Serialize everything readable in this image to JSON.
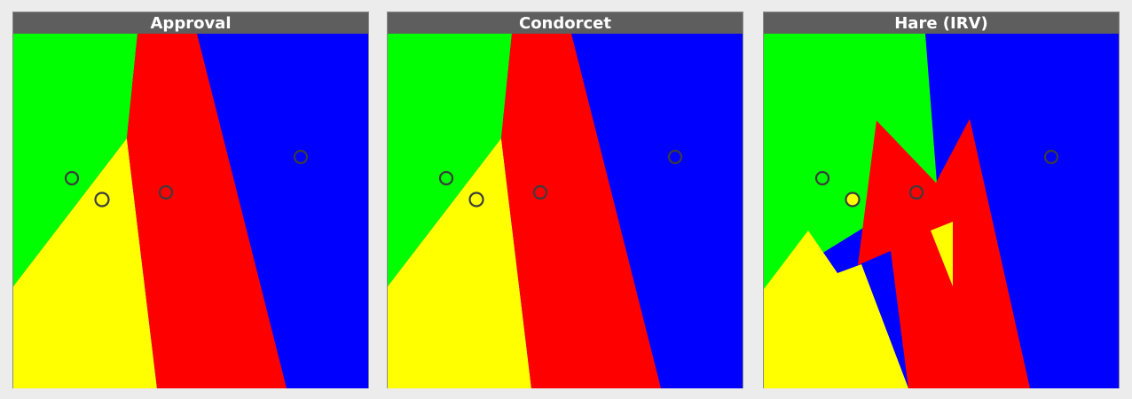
{
  "panels": [
    {
      "title": "Approval"
    },
    {
      "title": "Condorcet"
    },
    {
      "title": "Hare (IRV)"
    }
  ],
  "colors": {
    "green": "#00ff00",
    "red": "#ff0000",
    "blue": "#0000ff",
    "yellow": "#ffff00",
    "header_bg": "#5e5e5e",
    "border": "#8a8a8a",
    "page_bg": "#ececec"
  }
}
